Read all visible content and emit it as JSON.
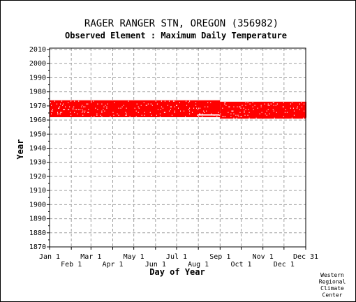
{
  "chart_data": {
    "type": "scatter",
    "title": "RAGER RANGER STN, OREGON   (356982)",
    "subtitle": "Observed Element : Maximum Daily Temperature",
    "xlabel": "Day of Year",
    "ylabel": "Year",
    "ylim": [
      1870,
      2011
    ],
    "xlim": [
      1,
      366
    ],
    "y_ticks": [
      1870,
      1880,
      1890,
      1900,
      1910,
      1920,
      1930,
      1940,
      1950,
      1960,
      1970,
      1980,
      1990,
      2000,
      2010
    ],
    "x_ticks_upper": [
      {
        "label": "Jan 1",
        "day": 1
      },
      {
        "label": "Mar 1",
        "day": 60
      },
      {
        "label": "May 1",
        "day": 121
      },
      {
        "label": "Jul 1",
        "day": 182
      },
      {
        "label": "Sep 1",
        "day": 244
      },
      {
        "label": "Nov 1",
        "day": 305
      },
      {
        "label": "Dec 31",
        "day": 366
      }
    ],
    "x_ticks_lower": [
      {
        "label": "Feb 1",
        "day": 32
      },
      {
        "label": "Apr 1",
        "day": 91
      },
      {
        "label": "Jun 1",
        "day": 152
      },
      {
        "label": "Aug 1",
        "day": 213
      },
      {
        "label": "Oct 1",
        "day": 274
      },
      {
        "label": "Dec 1",
        "day": 335
      }
    ],
    "grid": true,
    "series": [
      {
        "color": "#ff0000",
        "coverage": [
          {
            "from_day": 1,
            "to_day": 243,
            "from_year": 1962,
            "to_year": 1973
          },
          {
            "from_day": 244,
            "to_day": 366,
            "from_year": 1961,
            "to_year": 1972
          }
        ],
        "gaps": [
          {
            "from_day": 212,
            "to_day": 242,
            "year": 1963
          }
        ]
      }
    ],
    "credit": [
      "Western",
      "Regional",
      "Climate",
      "Center"
    ]
  }
}
